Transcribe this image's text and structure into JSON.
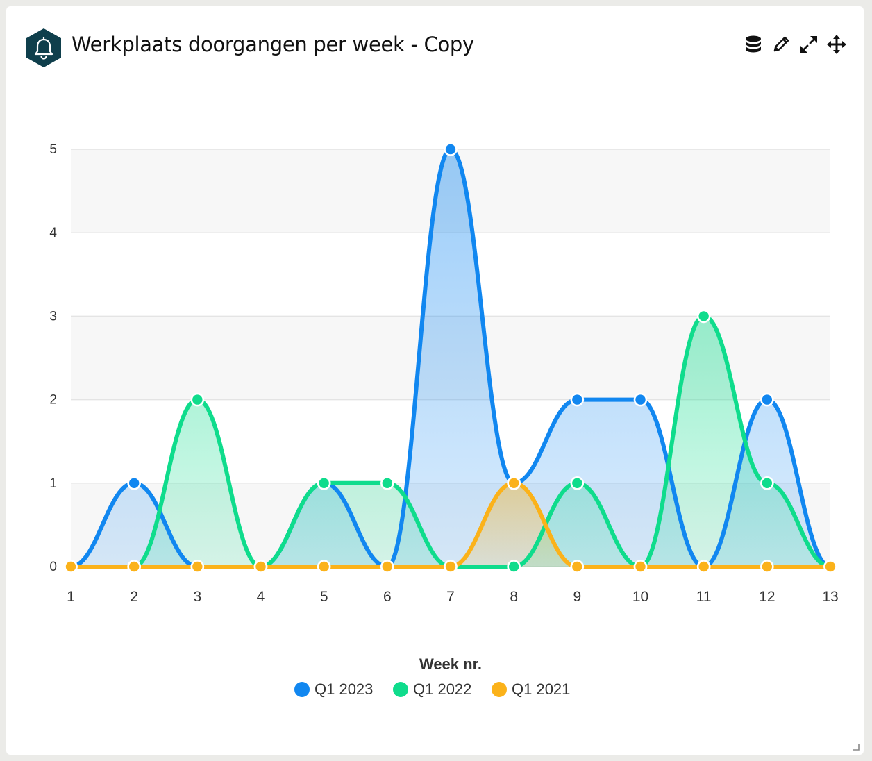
{
  "header": {
    "title": "Werkplaats doorgangen per week - Copy",
    "badge_icon": "bell-icon",
    "badge_color": "#0f3f4c",
    "tools": [
      {
        "name": "database-icon"
      },
      {
        "name": "pencil-icon"
      },
      {
        "name": "expand-icon"
      },
      {
        "name": "move-icon"
      }
    ]
  },
  "chart_data": {
    "type": "area",
    "x": [
      1,
      2,
      3,
      4,
      5,
      6,
      7,
      8,
      9,
      10,
      11,
      12,
      13
    ],
    "xlabel": "Week nr.",
    "ylabel": "",
    "ylim": [
      0,
      5
    ],
    "yticks": [
      0,
      1,
      2,
      3,
      4,
      5
    ],
    "grid": true,
    "legend_position": "bottom-center",
    "series": [
      {
        "name": "Q1 2023",
        "color": "#1187f0",
        "values": [
          0,
          1,
          0,
          0,
          1,
          0,
          5,
          1,
          2,
          2,
          0,
          2,
          0
        ]
      },
      {
        "name": "Q1 2022",
        "color": "#0fdc8c",
        "values": [
          0,
          0,
          2,
          0,
          1,
          1,
          0,
          0,
          1,
          0,
          3,
          1,
          0
        ]
      },
      {
        "name": "Q1 2021",
        "color": "#fbb21a",
        "values": [
          0,
          0,
          0,
          0,
          0,
          0,
          0,
          1,
          0,
          0,
          0,
          0,
          0
        ]
      }
    ]
  }
}
